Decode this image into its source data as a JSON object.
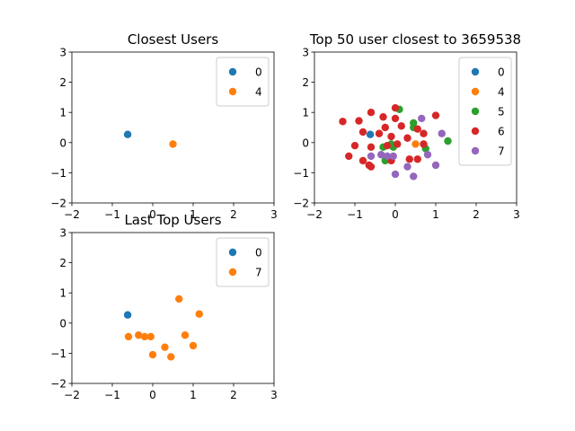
{
  "chart_data": [
    {
      "type": "scatter",
      "title": "Closest Users",
      "xlabel": "",
      "ylabel": "",
      "xlim": [
        -2,
        3
      ],
      "ylim": [
        -2,
        3
      ],
      "xticks": [
        "−2",
        "−1",
        "0",
        "1",
        "2",
        "3"
      ],
      "yticks": [
        "−2",
        "−1",
        "0",
        "1",
        "2",
        "3"
      ],
      "grid": false,
      "legend_position": "top-right",
      "series": [
        {
          "name": "0",
          "color": "#1f77b4",
          "points": [
            [
              -0.62,
              0.27
            ]
          ]
        },
        {
          "name": "4",
          "color": "#ff7f0e",
          "points": [
            [
              0.5,
              -0.05
            ]
          ]
        }
      ]
    },
    {
      "type": "scatter",
      "title": "Top 50 user closest to 3659538",
      "xlabel": "",
      "ylabel": "",
      "xlim": [
        -2,
        3
      ],
      "ylim": [
        -2,
        3
      ],
      "xticks": [
        "−2",
        "−1",
        "0",
        "1",
        "2",
        "3"
      ],
      "yticks": [
        "−2",
        "−1",
        "0",
        "1",
        "2",
        "3"
      ],
      "grid": false,
      "legend_position": "top-right",
      "series": [
        {
          "name": "0",
          "color": "#1f77b4",
          "points": [
            [
              -0.62,
              0.27
            ]
          ]
        },
        {
          "name": "4",
          "color": "#ff7f0e",
          "points": [
            [
              0.5,
              -0.05
            ]
          ]
        },
        {
          "name": "5",
          "color": "#2ca02c",
          "points": [
            [
              0.1,
              1.1
            ],
            [
              0.45,
              0.65
            ],
            [
              0.45,
              0.5
            ],
            [
              1.3,
              0.05
            ],
            [
              -0.1,
              -0.05
            ],
            [
              -0.05,
              -0.15
            ],
            [
              -0.3,
              -0.15
            ],
            [
              -0.25,
              -0.6
            ],
            [
              0.75,
              -0.2
            ]
          ]
        },
        {
          "name": "6",
          "color": "#d62728",
          "points": [
            [
              -1.3,
              0.7
            ],
            [
              -0.9,
              0.72
            ],
            [
              -0.6,
              1.0
            ],
            [
              -0.3,
              0.85
            ],
            [
              0.0,
              1.15
            ],
            [
              1.0,
              0.9
            ],
            [
              -0.8,
              0.35
            ],
            [
              -0.25,
              0.5
            ],
            [
              0.0,
              0.8
            ],
            [
              0.15,
              0.55
            ],
            [
              0.3,
              0.15
            ],
            [
              0.55,
              0.45
            ],
            [
              0.7,
              0.3
            ],
            [
              -0.4,
              0.3
            ],
            [
              -0.1,
              0.2
            ],
            [
              -1.0,
              -0.1
            ],
            [
              -0.6,
              -0.15
            ],
            [
              -0.2,
              -0.1
            ],
            [
              0.05,
              -0.05
            ],
            [
              -1.15,
              -0.45
            ],
            [
              -0.8,
              -0.6
            ],
            [
              -0.65,
              -0.75
            ],
            [
              -0.6,
              -0.8
            ],
            [
              -0.1,
              -0.6
            ],
            [
              0.35,
              -0.55
            ],
            [
              0.55,
              -0.55
            ],
            [
              0.7,
              -0.05
            ]
          ]
        },
        {
          "name": "7",
          "color": "#9467bd",
          "points": [
            [
              0.65,
              0.8
            ],
            [
              1.15,
              0.3
            ],
            [
              -0.6,
              -0.45
            ],
            [
              -0.35,
              -0.4
            ],
            [
              -0.2,
              -0.45
            ],
            [
              -0.05,
              -0.45
            ],
            [
              0.8,
              -0.4
            ],
            [
              0.3,
              -0.8
            ],
            [
              1.0,
              -0.75
            ],
            [
              0.0,
              -1.05
            ],
            [
              0.45,
              -1.12
            ]
          ]
        }
      ]
    },
    {
      "type": "scatter",
      "title": "Last Top Users",
      "xlabel": "",
      "ylabel": "",
      "xlim": [
        -2,
        3
      ],
      "ylim": [
        -2,
        3
      ],
      "xticks": [
        "−2",
        "−1",
        "0",
        "1",
        "2",
        "3"
      ],
      "yticks": [
        "−2",
        "−1",
        "0",
        "1",
        "2",
        "3"
      ],
      "grid": false,
      "legend_position": "top-right",
      "series": [
        {
          "name": "0",
          "color": "#1f77b4",
          "points": [
            [
              -0.62,
              0.27
            ]
          ]
        },
        {
          "name": "7",
          "color": "#ff7f0e",
          "points": [
            [
              0.65,
              0.8
            ],
            [
              1.15,
              0.3
            ],
            [
              -0.6,
              -0.45
            ],
            [
              -0.35,
              -0.4
            ],
            [
              -0.2,
              -0.45
            ],
            [
              -0.05,
              -0.45
            ],
            [
              0.8,
              -0.4
            ],
            [
              0.3,
              -0.8
            ],
            [
              1.0,
              -0.75
            ],
            [
              0.0,
              -1.05
            ],
            [
              0.45,
              -1.12
            ]
          ]
        }
      ]
    }
  ]
}
